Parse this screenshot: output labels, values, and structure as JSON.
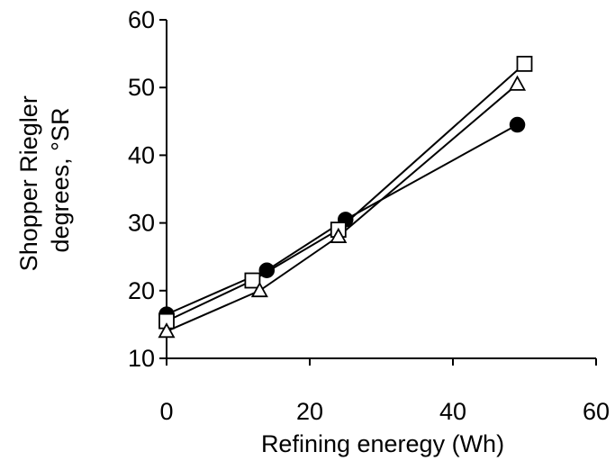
{
  "chart_data": {
    "type": "line",
    "title": "",
    "xlabel": "Refining eneregy (Wh)",
    "ylabel_lines": [
      "Shopper Riegler",
      "degrees, °SR"
    ],
    "xlim": [
      0,
      60
    ],
    "ylim": [
      10,
      60
    ],
    "x_ticks": [
      0,
      20,
      40,
      60
    ],
    "y_ticks": [
      10,
      20,
      30,
      40,
      50,
      60
    ],
    "grid": false,
    "legend": "none",
    "series": [
      {
        "marker": "filled-circle",
        "color": "#000000",
        "x": [
          0,
          14,
          25,
          49
        ],
        "y": [
          16.5,
          23,
          30.5,
          44.5
        ]
      },
      {
        "marker": "open-square",
        "color": "#000000",
        "x": [
          0,
          12,
          24,
          50
        ],
        "y": [
          15.5,
          21.5,
          29,
          53.5
        ]
      },
      {
        "marker": "open-triangle",
        "color": "#000000",
        "x": [
          0,
          13,
          24,
          49
        ],
        "y": [
          14,
          20,
          28,
          50.5
        ]
      }
    ]
  }
}
